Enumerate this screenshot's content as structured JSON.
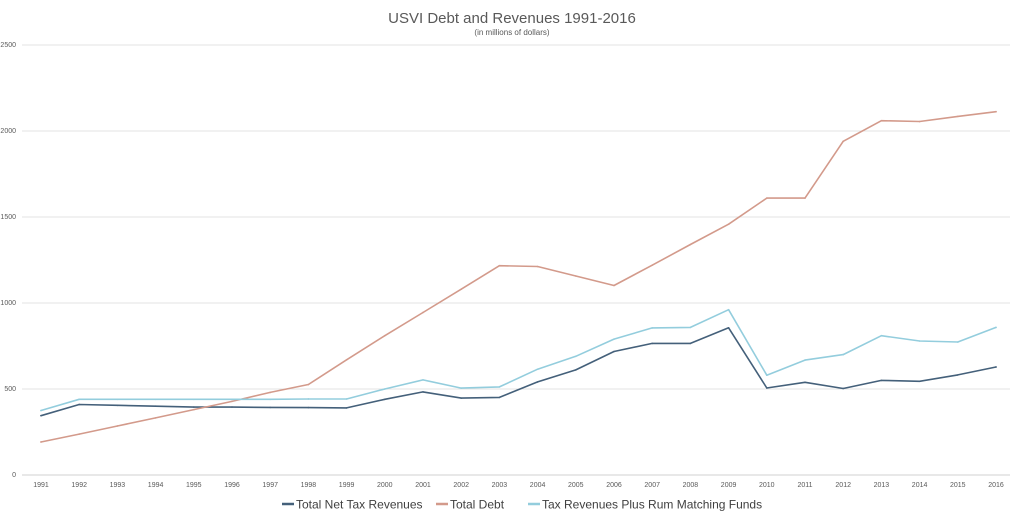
{
  "chart_data": {
    "type": "line",
    "title": "USVI Debt and Revenues 1991-2016",
    "subtitle": "(in millions of dollars)",
    "xlabel": "",
    "ylabel": "",
    "ylim": [
      0,
      2500
    ],
    "yticks": [
      "0",
      "500",
      "1000",
      "1500",
      "2000",
      "2500"
    ],
    "grid": "horizontal",
    "legend_position": "bottom",
    "categories": [
      "1991",
      "1992",
      "1993",
      "1994",
      "1995",
      "1996",
      "1997",
      "1998",
      "1999",
      "2000",
      "2001",
      "2002",
      "2003",
      "2004",
      "2005",
      "2006",
      "2007",
      "2008",
      "2009",
      "2010",
      "2011",
      "2012",
      "2013",
      "2014",
      "2015",
      "2016"
    ],
    "series": [
      {
        "name": "Total Net Tax Revenues",
        "color": "#44607a",
        "values": [
          345,
          410,
          405,
          400,
          395,
          395,
          393,
          392,
          390,
          440,
          483,
          447,
          451,
          541,
          611,
          718,
          765,
          765,
          856,
          506,
          539,
          503,
          550,
          545,
          582,
          628
        ]
      },
      {
        "name": "Total Debt",
        "color": "#d39a8b",
        "values": [
          192,
          238,
          285,
          332,
          380,
          428,
          480,
          526,
          670,
          810,
          945,
          1080,
          1217,
          1212,
          1157,
          1102,
          1220,
          1340,
          1458,
          1610,
          1610,
          1940,
          2060,
          2055,
          2085,
          2112
        ]
      },
      {
        "name": "Tax Revenues Plus Rum Matching Funds",
        "color": "#93cddd",
        "values": [
          375,
          440,
          440,
          440,
          440,
          440,
          440,
          442,
          442,
          500,
          553,
          505,
          512,
          615,
          690,
          790,
          855,
          858,
          961,
          580,
          668,
          700,
          810,
          779,
          773,
          858
        ]
      }
    ]
  }
}
